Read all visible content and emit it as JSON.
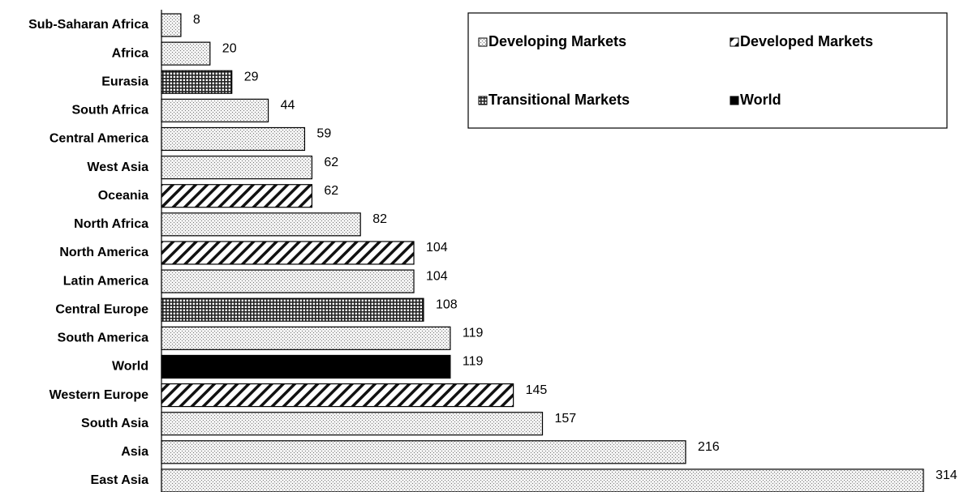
{
  "chart_data": {
    "type": "hbar",
    "categories": [
      "Sub-Saharan Africa",
      "Africa",
      "Eurasia",
      "South Africa",
      "Central America",
      "West Asia",
      "Oceania",
      "North Africa",
      "North America",
      "Latin America",
      "Central Europe",
      "South America",
      "World",
      "Western Europe",
      "South Asia",
      "Asia",
      "East Asia"
    ],
    "series": [
      {
        "name": "Developing Markets",
        "color": "#e8e8e8",
        "pattern": "dots",
        "values": [
          8,
          20,
          null,
          44,
          59,
          62,
          null,
          82,
          null,
          104,
          null,
          119,
          null,
          null,
          157,
          216,
          314
        ]
      },
      {
        "name": "Developed Markets",
        "color": "#ffffff",
        "pattern": "diagonal",
        "values": [
          null,
          null,
          null,
          null,
          null,
          null,
          62,
          null,
          104,
          null,
          null,
          null,
          null,
          145,
          null,
          null,
          null
        ]
      },
      {
        "name": "Transitional Markets",
        "color": "#ffffff",
        "pattern": "grid",
        "values": [
          null,
          null,
          29,
          null,
          null,
          null,
          null,
          null,
          null,
          null,
          108,
          null,
          null,
          null,
          null,
          null,
          null
        ]
      },
      {
        "name": "World",
        "color": "#000000",
        "pattern": "solid",
        "values": [
          null,
          null,
          null,
          null,
          null,
          null,
          null,
          null,
          null,
          null,
          null,
          null,
          119,
          null,
          null,
          null,
          null
        ]
      }
    ],
    "legend": "top-right"
  }
}
